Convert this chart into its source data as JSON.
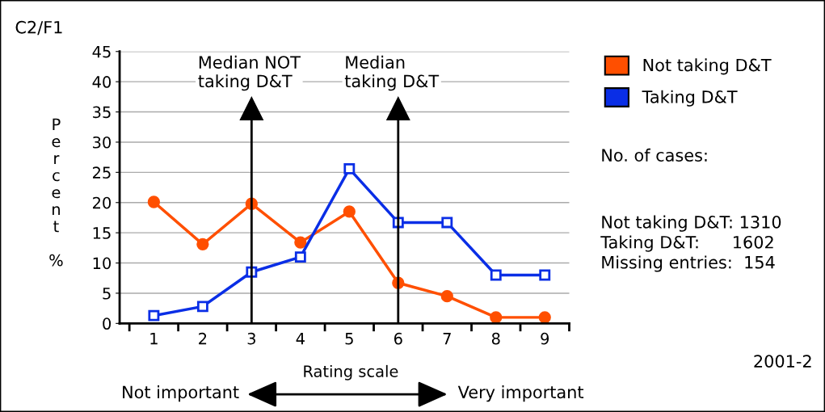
{
  "chart_data": {
    "type": "line",
    "categories": [
      "1",
      "2",
      "3",
      "4",
      "5",
      "6",
      "7",
      "8",
      "9"
    ],
    "series": [
      {
        "name": "Not taking D&T",
        "color": "#ff4f00",
        "marker": "circle",
        "values": [
          20.1,
          13.1,
          19.8,
          13.4,
          18.5,
          6.7,
          4.5,
          1,
          1
        ]
      },
      {
        "name": "Taking D&T",
        "color": "#0a2ee6",
        "marker": "square",
        "values": [
          1.3,
          2.8,
          8.5,
          11,
          25.6,
          16.7,
          16.7,
          8,
          8
        ]
      }
    ],
    "ylim": [
      0,
      45
    ],
    "yticks": [
      0,
      5,
      10,
      15,
      20,
      25,
      30,
      35,
      40,
      45
    ],
    "ylabel": "Percent %",
    "xlabel": "Rating scale",
    "grid": "y",
    "legend": "right",
    "line_style": "solid",
    "ref_lines": [
      {
        "axis": "x",
        "value": "3",
        "label": "Median NOT\ntaking D&T",
        "color": "#000000"
      },
      {
        "axis": "x",
        "value": "6",
        "label": "Median\ntaking D&T",
        "color": "#000000"
      }
    ],
    "annotations": [
      "C2/F1",
      "No. of cases:",
      "Not taking D&T: 1310\nTaking D&T:      1602\nMissing entries:  154",
      "Not important",
      "Very important",
      "2001-2"
    ]
  }
}
